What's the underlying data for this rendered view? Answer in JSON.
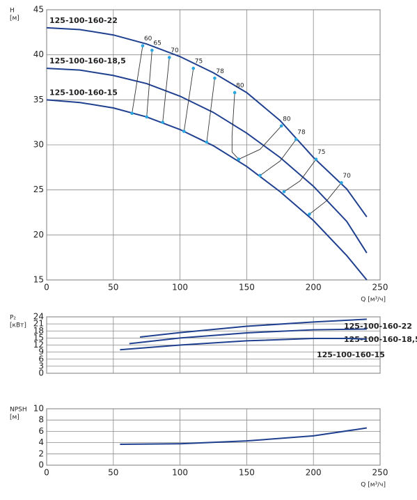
{
  "chart_data": [
    {
      "type": "line",
      "ylabel": [
        "H",
        "[м]"
      ],
      "xlabel": "Q [м³/ч]",
      "xlim": [
        0,
        250
      ],
      "xticks": [
        0,
        50,
        100,
        150,
        200,
        250
      ],
      "ylim": [
        15,
        45
      ],
      "yticks": [
        15,
        20,
        25,
        30,
        35,
        40,
        45
      ],
      "grid": true,
      "x": [
        0,
        25,
        50,
        75,
        100,
        125,
        150,
        175,
        200,
        225,
        240
      ],
      "series": [
        {
          "name": "125-100-160-22",
          "color": "#1f3f8f",
          "values": [
            43,
            42.8,
            42.2,
            41.2,
            39.8,
            38,
            35.8,
            32.7,
            28.6,
            25.1,
            22
          ]
        },
        {
          "name": "125-100-160-18,5",
          "color": "#1f3f8f",
          "values": [
            38.5,
            38.3,
            37.7,
            36.8,
            35.4,
            33.6,
            31.3,
            28.6,
            25.4,
            21.5,
            18
          ]
        },
        {
          "name": "125-100-160-15",
          "color": "#1f3f8f",
          "values": [
            35,
            34.7,
            34.1,
            33.1,
            31.7,
            29.9,
            27.6,
            24.8,
            21.6,
            17.7,
            15
          ]
        }
      ],
      "efficiency_lines": [
        {
          "value": 60,
          "q": [
            72,
            64
          ],
          "h": [
            41,
            33.5
          ]
        },
        {
          "value": 65,
          "q": [
            79,
            75
          ],
          "h": [
            40.5,
            33.1
          ]
        },
        {
          "value": 70,
          "q": [
            92,
            87
          ],
          "h": [
            39.7,
            32.5
          ]
        },
        {
          "value": 75,
          "q": [
            110,
            103
          ],
          "h": [
            38.5,
            31.5
          ]
        },
        {
          "value": 78,
          "q": [
            126,
            120
          ],
          "h": [
            37.4,
            30.3
          ]
        },
        {
          "value": 80,
          "q": [
            141,
            139,
            139,
            144
          ],
          "h": [
            35.8,
            31,
            29.2,
            28.4
          ]
        },
        {
          "value": 80,
          "q": [
            176,
            160,
            144
          ],
          "h": [
            32.1,
            29.5,
            28.4
          ]
        },
        {
          "value": 78,
          "q": [
            187,
            175,
            160
          ],
          "h": [
            30.6,
            28.2,
            26.6
          ]
        },
        {
          "value": 75,
          "q": [
            202,
            190,
            178
          ],
          "h": [
            28.4,
            26,
            24.8
          ]
        },
        {
          "value": 70,
          "q": [
            221,
            210,
            197
          ],
          "h": [
            25.8,
            23.8,
            22.3
          ]
        }
      ]
    },
    {
      "type": "line",
      "ylabel": [
        "P₂",
        "[кВт]"
      ],
      "xlim": [
        0,
        250
      ],
      "xticks": [
        0,
        50,
        100,
        150,
        200,
        250
      ],
      "show_xtick_labels": false,
      "ylim": [
        0,
        24
      ],
      "yticks": [
        0,
        3,
        6,
        9,
        12,
        15,
        18,
        21,
        24
      ],
      "grid": true,
      "series": [
        {
          "name": "125-100-160-22",
          "color": "#1f3f8f",
          "x": [
            70,
            100,
            150,
            200,
            240
          ],
          "values": [
            15.4,
            17.3,
            20,
            21.8,
            23
          ]
        },
        {
          "name": "125-100-160-18,5",
          "color": "#1f3f8f",
          "x": [
            62,
            100,
            150,
            200,
            240
          ],
          "values": [
            12.6,
            15,
            17.2,
            18.5,
            18.8
          ]
        },
        {
          "name": "125-100-160-15",
          "color": "#1f3f8f",
          "x": [
            55,
            100,
            150,
            200,
            225,
            240
          ],
          "values": [
            10,
            12,
            13.8,
            14.8,
            14.8,
            14.5
          ]
        }
      ]
    },
    {
      "type": "line",
      "ylabel": [
        "NPSH",
        "[м]"
      ],
      "xlabel": "Q [м³/ч]",
      "xlim": [
        0,
        250
      ],
      "xticks": [
        0,
        50,
        100,
        150,
        200,
        250
      ],
      "ylim": [
        0,
        10
      ],
      "yticks": [
        0,
        2,
        4,
        6,
        8,
        10
      ],
      "grid": true,
      "series": [
        {
          "color": "#1f3f8f",
          "x": [
            55,
            100,
            150,
            200,
            240
          ],
          "values": [
            3.7,
            3.8,
            4.3,
            5.2,
            6.6
          ]
        }
      ]
    }
  ]
}
